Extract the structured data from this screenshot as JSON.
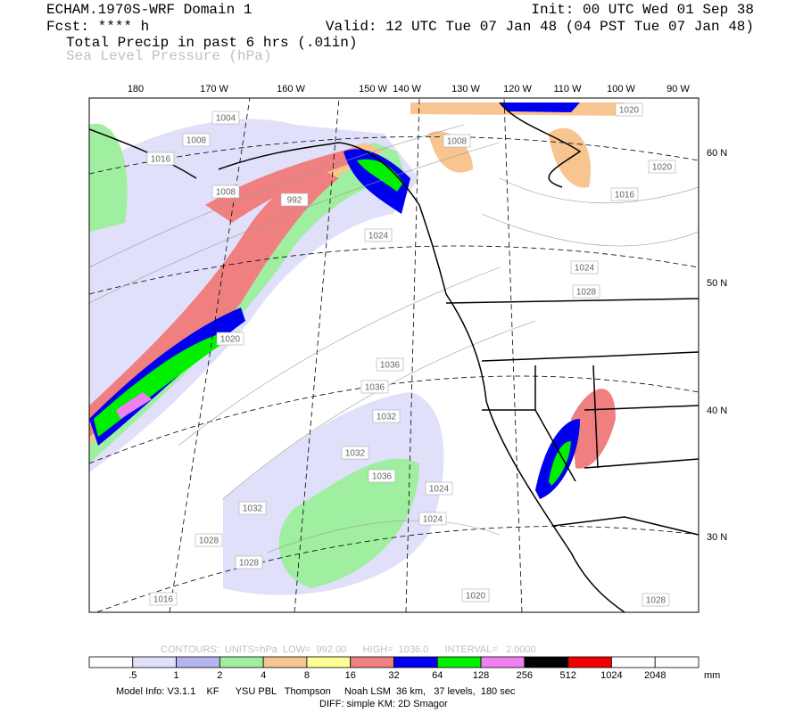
{
  "header": {
    "title": "ECHAM.1970S-WRF Domain 1",
    "init": "Init: 00 UTC Wed 01 Sep 38",
    "fcst": "Fcst: **** h",
    "valid": "Valid: 12 UTC Tue 07 Jan 48 (04 PST Tue 07 Jan 48)",
    "field1": "Total Precip in past 6 hrs (.01in)",
    "field2": "Sea Level Pressure (hPa)"
  },
  "map": {
    "lon_labels": [
      "180",
      "170 W",
      "160 W",
      "150 W",
      "140 W",
      "130 W",
      "120 W",
      "110 W",
      "100 W",
      "90 W"
    ],
    "lat_labels": [
      "60 N",
      "50 N",
      "40 N",
      "30 N"
    ],
    "contour_labels": [
      "1004",
      "1008",
      "1016",
      "1008",
      "992",
      "1024",
      "1020",
      "1008",
      "1016",
      "1020",
      "1036",
      "1036",
      "1032",
      "1032",
      "1036",
      "1024",
      "1024",
      "1032",
      "1028",
      "1028",
      "1024",
      "1028",
      "1016",
      "1020",
      "1028",
      "1020"
    ]
  },
  "contour_info": "CONTOURS:  UNITS=hPa  LOW=  992.00      HIGH=  1036.0      INTERVAL=   2.0000",
  "colorbar": {
    "colors": [
      "#ffffff",
      "#e0e0fa",
      "#b4b4f0",
      "#a0eea0",
      "#f8c490",
      "#ffff96",
      "#f08080",
      "#0000f0",
      "#00f000",
      "#f080f0",
      "#000000",
      "#f00000",
      "#ffffff",
      "#ffffff"
    ],
    "labels": [
      ".5",
      "1",
      "2",
      "4",
      "8",
      "16",
      "32",
      "64",
      "128",
      "256",
      "512",
      "1024",
      "2048"
    ],
    "units": "mm"
  },
  "footer": {
    "model": "Model Info: V3.1.1    KF      YSU PBL   Thompson     Noah LSM  36 km,   37 levels,  180 sec",
    "diff": "DIFF: simple KM: 2D Smagor"
  }
}
